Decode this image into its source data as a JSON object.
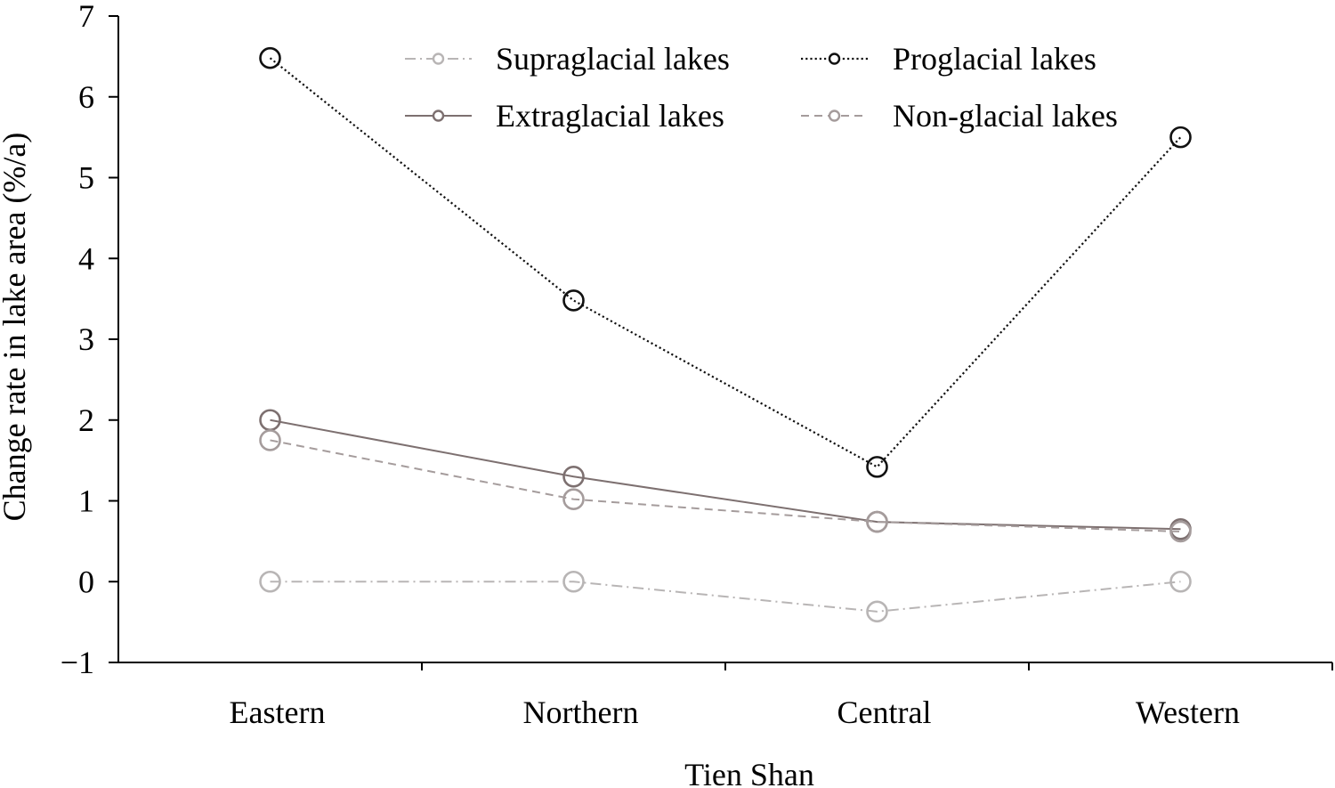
{
  "chart_data": {
    "type": "line",
    "title": "",
    "xlabel": "Tien Shan",
    "ylabel": "Change rate in lake area (%/a)",
    "categories": [
      "Eastern",
      "Northern",
      "Central",
      "Western"
    ],
    "ylim": [
      -1,
      7
    ],
    "yticks": [
      "−1",
      "0",
      "1",
      "2",
      "3",
      "4",
      "5",
      "6",
      "7"
    ],
    "grid": false,
    "legend_position": "top",
    "series": [
      {
        "name": "Supraglacial lakes",
        "values": [
          0.0,
          0.0,
          -0.37,
          0.0
        ],
        "color": "#b8b5b5",
        "dash": "dashdot"
      },
      {
        "name": "Proglacial lakes",
        "values": [
          6.48,
          3.48,
          1.42,
          5.5
        ],
        "color": "#111111",
        "dash": "dotted"
      },
      {
        "name": "Extraglacial lakes",
        "values": [
          2.0,
          1.3,
          0.74,
          0.65
        ],
        "color": "#7d7070",
        "dash": "solid"
      },
      {
        "name": "Non-glacial lakes",
        "values": [
          1.75,
          1.02,
          0.74,
          0.62
        ],
        "color": "#a59c9c",
        "dash": "dashed"
      }
    ]
  }
}
